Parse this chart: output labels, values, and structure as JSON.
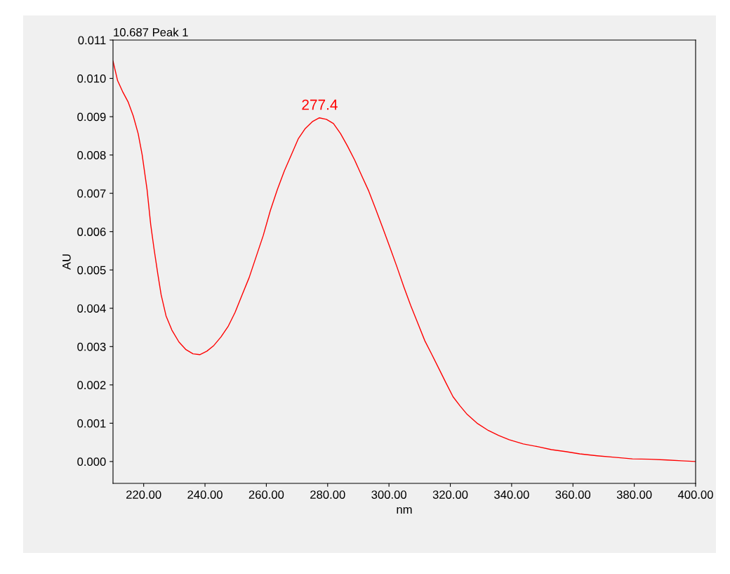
{
  "chart_data": {
    "type": "line",
    "title": "10.687 Peak 1",
    "xlabel": "nm",
    "ylabel": "AU",
    "xlim": [
      210,
      400
    ],
    "ylim": [
      -0.00057,
      0.011
    ],
    "xticks": [
      {
        "value": 220,
        "label": "220.00"
      },
      {
        "value": 240,
        "label": "240.00"
      },
      {
        "value": 260,
        "label": "260.00"
      },
      {
        "value": 280,
        "label": "280.00"
      },
      {
        "value": 300,
        "label": "300.00"
      },
      {
        "value": 320,
        "label": "320.00"
      },
      {
        "value": 340,
        "label": "340.00"
      },
      {
        "value": 360,
        "label": "360.00"
      },
      {
        "value": 380,
        "label": "380.00"
      },
      {
        "value": 400,
        "label": "400.00"
      }
    ],
    "yticks": [
      {
        "value": 0,
        "label": "0.000"
      },
      {
        "value": 0.001,
        "label": "0.001"
      },
      {
        "value": 0.002,
        "label": "0.002"
      },
      {
        "value": 0.003,
        "label": "0.003"
      },
      {
        "value": 0.004,
        "label": "0.004"
      },
      {
        "value": 0.005,
        "label": "0.005"
      },
      {
        "value": 0.006,
        "label": "0.006"
      },
      {
        "value": 0.007,
        "label": "0.007"
      },
      {
        "value": 0.008,
        "label": "0.008"
      },
      {
        "value": 0.009,
        "label": "0.009"
      },
      {
        "value": 0.01,
        "label": "0.010"
      },
      {
        "value": 0.011,
        "label": "0.011"
      }
    ],
    "grid": false,
    "legend": false,
    "annotations": [
      {
        "text": "277.4",
        "x": 277.4,
        "y": 0.009
      }
    ],
    "series": [
      {
        "color": "#ff0000",
        "x": [
          210,
          211.5,
          213.1,
          214.9,
          216.6,
          218.2,
          219.5,
          221.1,
          222.3,
          223.4,
          224.6,
          225.7,
          227.3,
          229.2,
          231.5,
          233.8,
          236.1,
          238.3,
          240.6,
          242.9,
          245.2,
          247.5,
          249.8,
          252.1,
          254.4,
          256.7,
          259,
          261.3,
          263.6,
          265.9,
          268.2,
          270.4,
          272.7,
          275,
          277.3,
          279.6,
          281.9,
          284.2,
          286.5,
          288.8,
          291.1,
          293.4,
          295.7,
          298,
          300.3,
          302.6,
          304.8,
          307.1,
          309.4,
          311.7,
          314,
          316.3,
          318.6,
          320.9,
          323.2,
          325.5,
          328.9,
          332.4,
          335.8,
          339.2,
          343.8,
          348.4,
          353,
          357.6,
          362.2,
          367.9,
          373.6,
          379.4,
          385.1,
          390.8,
          395.4,
          400
        ],
        "values": [
          0.01045,
          0.00994,
          0.00966,
          0.00939,
          0.00902,
          0.00856,
          0.00801,
          0.0071,
          0.00618,
          0.00554,
          0.0049,
          0.00435,
          0.0038,
          0.00343,
          0.00312,
          0.00292,
          0.00281,
          0.00279,
          0.00288,
          0.00303,
          0.00325,
          0.00352,
          0.00389,
          0.00435,
          0.0048,
          0.00535,
          0.0059,
          0.00655,
          0.0071,
          0.00759,
          0.00801,
          0.00842,
          0.00869,
          0.00887,
          0.00897,
          0.00893,
          0.00882,
          0.00856,
          0.00823,
          0.00787,
          0.00746,
          0.00706,
          0.00658,
          0.00609,
          0.00559,
          0.00508,
          0.00457,
          0.00407,
          0.00361,
          0.00315,
          0.00279,
          0.00242,
          0.00205,
          0.00169,
          0.00145,
          0.00123,
          0.00099,
          0.00081,
          0.00068,
          0.00057,
          0.00046,
          0.00039,
          0.00031,
          0.00026,
          0.0002,
          0.00015,
          0.00011,
          7e-05,
          6e-05,
          4e-05,
          2e-05,
          0.0
        ]
      }
    ]
  }
}
